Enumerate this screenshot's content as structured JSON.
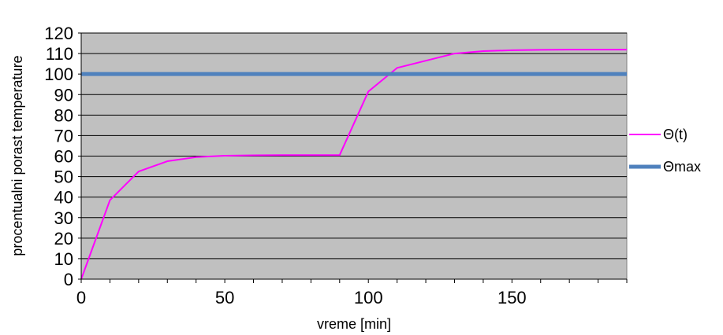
{
  "chart_data": {
    "type": "line",
    "title": "",
    "xlabel": "vreme [min]",
    "ylabel": "procentualni   porast temperature",
    "xlim": [
      0,
      190
    ],
    "ylim": [
      0,
      120
    ],
    "x_ticks": [
      0,
      50,
      100,
      150
    ],
    "y_ticks": [
      0,
      10,
      20,
      30,
      40,
      50,
      60,
      70,
      80,
      90,
      100,
      110,
      120
    ],
    "grid": "horizontal",
    "legend_position": "right",
    "colors": {
      "plot_background": "#c0c0c0",
      "theta_t": "#ff00ff",
      "theta_max": "#4f81bd"
    },
    "series": [
      {
        "name": "Θ(t)",
        "x": [
          0,
          10,
          20,
          30,
          40,
          50,
          60,
          70,
          80,
          90,
          100,
          110,
          120,
          130,
          140,
          150,
          160,
          170,
          180,
          190
        ],
        "values": [
          0,
          38.5,
          52.5,
          57.5,
          59.5,
          60.2,
          60.4,
          60.5,
          60.5,
          60.5,
          91.5,
          103,
          106.5,
          110,
          111.2,
          111.6,
          111.8,
          111.9,
          111.9,
          111.9
        ]
      },
      {
        "name": "Θmax",
        "x": [
          0,
          190
        ],
        "values": [
          100,
          100
        ]
      }
    ]
  }
}
